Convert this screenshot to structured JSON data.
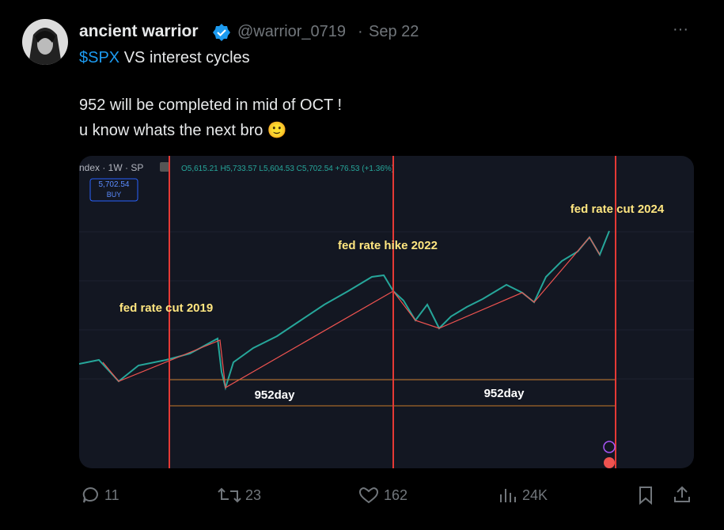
{
  "tweet": {
    "author": {
      "name": "ancient warrior",
      "handle": "@warrior_0719",
      "separator": "·",
      "date": "Sep 22"
    },
    "menu": "···",
    "text": {
      "cashtag": "$SPX",
      "line1_rest": " VS interest cycles",
      "line2": "952 will be completed in mid of OCT !",
      "line3": "u know whats the next bro 🙂"
    },
    "media": {
      "symbol": "ndex · 1W · SP",
      "ohlc": "O5,615.21 H5,733.57 L5,604.53 C5,702.54 +76.53 (+1.36%)",
      "price": "5,702.54",
      "buy": "BUY",
      "annotations": [
        "fed rate cut 2019",
        "fed rate hike 2022",
        "fed rate cut 2024"
      ],
      "intervals": [
        "952day",
        "952day"
      ]
    },
    "actions": {
      "replies": "11",
      "reposts": "23",
      "likes": "162",
      "views": "24K"
    }
  }
}
